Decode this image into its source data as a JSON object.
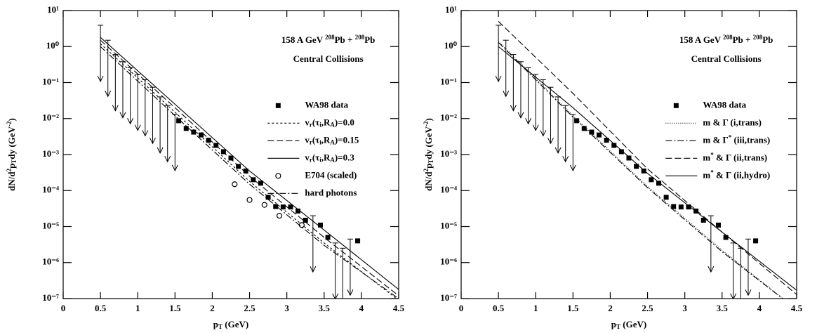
{
  "chart_data": [
    {
      "type": "line",
      "log_y": true,
      "annotations": [
        [
          {
            "text": "158 A GeV "
          },
          {
            "sup": "208"
          },
          {
            "text": "Pb + "
          },
          {
            "sup": "208"
          },
          {
            "text": "Pb"
          }
        ],
        "Central Collisions"
      ],
      "x_label": [
        {
          "text": "p"
        },
        {
          "sub": "T"
        },
        {
          "text": " (GeV)"
        }
      ],
      "y_label": [
        {
          "text": "dN/d"
        },
        {
          "sup": "2"
        },
        {
          "text": "p"
        },
        {
          "sub": "T"
        },
        {
          "text": "dy (GeV"
        },
        {
          "sup": "-2"
        },
        {
          "text": ")"
        }
      ],
      "xlim": [
        0,
        4.5
      ],
      "xticks": [
        0,
        0.5,
        1,
        1.5,
        2,
        2.5,
        3,
        3.5,
        4,
        4.5
      ],
      "ylim": [
        1e-07,
        10
      ],
      "yticks": [
        {
          "value": 1e-07,
          "label": "10⁻⁷"
        },
        {
          "value": 1e-06,
          "label": "10⁻⁶"
        },
        {
          "value": 1e-05,
          "label": "10⁻⁵"
        },
        {
          "value": 0.0001,
          "label": "10⁻⁴"
        },
        {
          "value": 0.001,
          "label": "10⁻³"
        },
        {
          "value": 0.01,
          "label": "10⁻²"
        },
        {
          "value": 0.1,
          "label": "10⁻¹"
        },
        {
          "value": 1,
          "label": "10⁰"
        },
        {
          "value": 10,
          "label": "10¹"
        }
      ],
      "series": [
        {
          "name": "WA98 data",
          "marker": "square",
          "color": "#000",
          "x": [
            1.55,
            1.65,
            1.75,
            1.85,
            1.95,
            2.05,
            2.15,
            2.25,
            2.35,
            2.45,
            2.55,
            2.65,
            2.75,
            2.85,
            2.95,
            3.05,
            3.15,
            3.25,
            3.45,
            3.55,
            3.95
          ],
          "values": [
            0.0087,
            0.0053,
            0.0042,
            0.0035,
            0.0025,
            0.0018,
            0.0012,
            0.0008,
            0.00047,
            0.00035,
            0.0002,
            0.00016,
            6.5e-05,
            3.6e-05,
            3.5e-05,
            3.5e-05,
            2.7e-05,
            1.5e-05,
            1.1e-05,
            5e-06,
            4e-06
          ]
        },
        {
          "name": [
            {
              "text": "v"
            },
            {
              "sub": "r"
            },
            {
              "text": "(τ"
            },
            {
              "sub": "i"
            },
            {
              "text": ",R"
            },
            {
              "sub": "A"
            },
            {
              "text": ")=0.0"
            }
          ],
          "dash": "3,3",
          "color": "#000",
          "x": [
            0.5,
            1.5,
            2.5,
            3.5,
            4.5
          ],
          "values": [
            1.2,
            0.015,
            0.00018,
            3.5e-06,
            9e-08
          ]
        },
        {
          "name": [
            {
              "text": "v"
            },
            {
              "sub": "r"
            },
            {
              "text": "(τ"
            },
            {
              "sub": "i"
            },
            {
              "text": ",R"
            },
            {
              "sub": "A"
            },
            {
              "text": ")=0.15"
            }
          ],
          "dash": "9,4",
          "color": "#000",
          "x": [
            0.5,
            1.5,
            2.5,
            3.5,
            4.5
          ],
          "values": [
            1.5,
            0.02,
            0.00025,
            5e-06,
            1.2e-07
          ]
        },
        {
          "name": [
            {
              "text": "v"
            },
            {
              "sub": "r"
            },
            {
              "text": "(τ"
            },
            {
              "sub": "i"
            },
            {
              "text": ",R"
            },
            {
              "sub": "A"
            },
            {
              "text": ")=0.3"
            }
          ],
          "dash": "none",
          "color": "#000",
          "x": [
            0.5,
            1.5,
            2.5,
            3.5,
            4.5
          ],
          "values": [
            1.8,
            0.025,
            0.00035,
            8e-06,
            1.8e-07
          ]
        },
        {
          "name": "E704 (scaled)",
          "marker": "circle",
          "color": "#000",
          "x": [
            2.3,
            2.5,
            2.7,
            2.9,
            3.2
          ],
          "values": [
            0.00015,
            5.5e-05,
            4e-05,
            2e-05,
            1.1e-05
          ]
        },
        {
          "name": "hard photons",
          "dash": "9,3,2,3",
          "color": "#000",
          "x": [
            0.5,
            1.5,
            2.5,
            3.5,
            4.5
          ],
          "values": [
            1.0,
            0.012,
            0.00015,
            3e-06,
            1e-07
          ]
        },
        {
          "marker": "arrow",
          "color": "#000",
          "x": [
            0.5,
            0.6,
            0.7,
            0.8,
            0.9,
            1.0,
            1.1,
            1.2,
            1.3,
            1.4,
            1.5,
            3.35,
            3.65,
            3.75,
            3.85
          ],
          "values": [
            3.9,
            1.5,
            0.6,
            0.38,
            0.26,
            0.17,
            0.12,
            0.074,
            0.04,
            0.023,
            0.013,
            2e-05,
            3.5e-06,
            2.5e-06,
            4.5e-06
          ]
        }
      ]
    },
    {
      "type": "line",
      "log_y": true,
      "annotations": [
        [
          {
            "text": "158 A GeV "
          },
          {
            "sup": "208"
          },
          {
            "text": "Pb + "
          },
          {
            "sup": "208"
          },
          {
            "text": "Pb"
          }
        ],
        "Central Collisions"
      ],
      "x_label": [
        {
          "text": "p"
        },
        {
          "sub": "T"
        },
        {
          "text": " (GeV)"
        }
      ],
      "y_label": [
        {
          "text": "dN/d"
        },
        {
          "sup": "2"
        },
        {
          "text": "p"
        },
        {
          "sub": "T"
        },
        {
          "text": "dy (GeV"
        },
        {
          "sup": "-2"
        },
        {
          "text": ")"
        }
      ],
      "xlim": [
        0,
        4.5
      ],
      "xticks": [
        0,
        0.5,
        1,
        1.5,
        2,
        2.5,
        3,
        3.5,
        4,
        4.5
      ],
      "ylim": [
        1e-07,
        10
      ],
      "yticks": [
        {
          "value": 1e-07,
          "label": "10⁻⁷"
        },
        {
          "value": 1e-06,
          "label": "10⁻⁶"
        },
        {
          "value": 1e-05,
          "label": "10⁻⁵"
        },
        {
          "value": 0.0001,
          "label": "10⁻⁴"
        },
        {
          "value": 0.001,
          "label": "10⁻³"
        },
        {
          "value": 0.01,
          "label": "10⁻²"
        },
        {
          "value": 0.1,
          "label": "10⁻¹"
        },
        {
          "value": 1,
          "label": "10⁰"
        },
        {
          "value": 10,
          "label": "10¹"
        }
      ],
      "series": [
        {
          "name": "WA98 data",
          "marker": "square",
          "color": "#000",
          "x": [
            1.55,
            1.65,
            1.75,
            1.85,
            1.95,
            2.05,
            2.15,
            2.25,
            2.35,
            2.45,
            2.55,
            2.65,
            2.75,
            2.85,
            2.95,
            3.05,
            3.15,
            3.25,
            3.45,
            3.55,
            3.95
          ],
          "values": [
            0.0087,
            0.0053,
            0.0042,
            0.0035,
            0.0025,
            0.0018,
            0.0012,
            0.0008,
            0.00047,
            0.00035,
            0.0002,
            0.00016,
            6.5e-05,
            3.6e-05,
            3.5e-05,
            3.5e-05,
            2.7e-05,
            1.5e-05,
            1.1e-05,
            5e-06,
            4e-06
          ]
        },
        {
          "name": "m & Γ (i,trans)",
          "dash": "1,2",
          "color": "#000",
          "x": [
            0.5,
            1.5,
            2.5,
            3.5,
            4.5
          ],
          "values": [
            1.4,
            0.012,
            0.00013,
            2.2e-06,
            5e-08
          ]
        },
        {
          "name": [
            {
              "text": "m & Γ"
            },
            {
              "sup": "*"
            },
            {
              "text": " (iii,trans)"
            }
          ],
          "dash": "9,3,2,3",
          "color": "#000",
          "x": [
            0.5,
            1.5,
            2.5,
            3.5,
            4.5
          ],
          "values": [
            1.3,
            0.011,
            0.00012,
            2e-06,
            5e-08
          ]
        },
        {
          "name": [
            {
              "text": "m"
            },
            {
              "sup": "*"
            },
            {
              "text": " & Γ (ii,trans)"
            }
          ],
          "dash": "9,4",
          "color": "#000",
          "x": [
            0.5,
            1.5,
            2.5,
            3.5,
            4.5
          ],
          "values": [
            5,
            0.05,
            0.0004,
            7e-06,
            1.3e-07
          ]
        },
        {
          "name": [
            {
              "text": "m"
            },
            {
              "sup": "*"
            },
            {
              "text": " & Γ (ii,hydro)"
            }
          ],
          "dash": "none",
          "color": "#000",
          "x": [
            0.5,
            1.5,
            2.5,
            3.5,
            4.5
          ],
          "values": [
            1.0,
            0.02,
            0.0003,
            7e-06,
            1.7e-07
          ]
        },
        {
          "marker": "arrow",
          "color": "#000",
          "x": [
            0.5,
            0.6,
            0.7,
            0.8,
            0.9,
            1.0,
            1.1,
            1.2,
            1.3,
            1.4,
            1.5,
            3.35,
            3.65,
            3.75,
            3.85
          ],
          "values": [
            3.9,
            1.5,
            0.6,
            0.38,
            0.26,
            0.17,
            0.12,
            0.074,
            0.04,
            0.023,
            0.013,
            2e-05,
            3.5e-06,
            2.5e-06,
            4.5e-06
          ]
        }
      ]
    }
  ]
}
